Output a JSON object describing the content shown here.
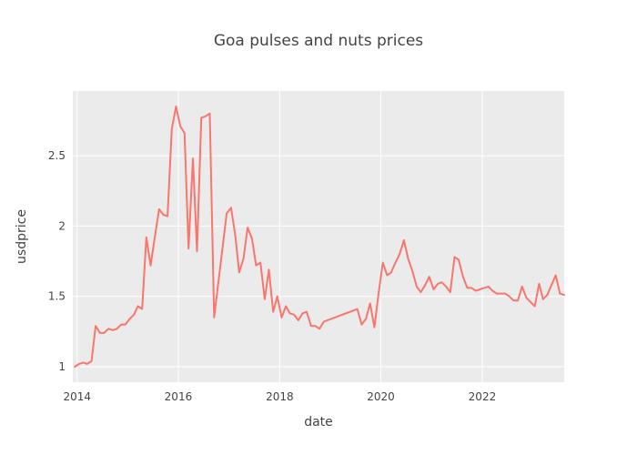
{
  "chart_data": {
    "type": "line",
    "title": "Goa pulses and nuts prices",
    "xlabel": "date",
    "ylabel": "usdprice",
    "x_ticks": [
      "2014",
      "2016",
      "2018",
      "2020",
      "2022"
    ],
    "y_ticks": [
      "1",
      "1.5",
      "2",
      "2.5"
    ],
    "xlim": [
      "2013-12-01",
      "2023-08-15"
    ],
    "ylim": [
      0.89,
      2.96
    ],
    "grid": true,
    "colors": {
      "series": "#f8766d",
      "plot_bg": "#ebebeb",
      "grid": "#ffffff"
    },
    "series": [
      {
        "x": [
          "2013-12-15",
          "2014-01-15",
          "2014-02-15",
          "2014-03-15",
          "2014-04-15",
          "2014-05-15",
          "2014-06-15",
          "2014-07-15",
          "2014-08-15",
          "2014-09-15",
          "2014-10-15",
          "2014-11-15",
          "2014-12-15",
          "2015-01-15",
          "2015-02-15",
          "2015-03-15",
          "2015-04-15",
          "2015-05-15",
          "2015-06-15",
          "2015-07-15",
          "2015-08-15",
          "2015-09-15",
          "2015-10-15",
          "2015-11-15",
          "2015-12-15",
          "2016-01-15",
          "2016-02-15",
          "2016-03-15",
          "2016-04-15",
          "2016-05-15",
          "2016-06-15",
          "2016-07-15",
          "2016-08-15",
          "2016-09-15",
          "2016-12-15",
          "2017-01-15",
          "2017-02-15",
          "2017-03-15",
          "2017-04-15",
          "2017-05-15",
          "2017-06-15",
          "2017-07-15",
          "2017-08-15",
          "2017-09-15",
          "2017-10-15",
          "2017-11-15",
          "2017-12-15",
          "2018-01-15",
          "2018-02-15",
          "2018-03-15",
          "2018-04-15",
          "2018-05-15",
          "2018-06-15",
          "2018-07-15",
          "2018-08-15",
          "2018-09-15",
          "2018-10-15",
          "2018-11-15",
          "2019-07-15",
          "2019-08-15",
          "2019-09-15",
          "2019-10-15",
          "2019-11-15",
          "2019-12-15",
          "2020-01-15",
          "2020-02-15",
          "2020-03-15",
          "2020-04-15",
          "2020-05-15",
          "2020-06-15",
          "2020-07-15",
          "2020-08-15",
          "2020-09-15",
          "2020-10-15",
          "2020-11-15",
          "2020-12-15",
          "2021-01-15",
          "2021-02-15",
          "2021-03-15",
          "2021-04-15",
          "2021-05-15",
          "2021-06-15",
          "2021-07-15",
          "2021-08-15",
          "2021-09-15",
          "2021-10-15",
          "2021-11-15",
          "2021-12-15",
          "2022-01-15",
          "2022-02-15",
          "2022-03-15",
          "2022-04-15",
          "2022-05-15",
          "2022-06-15",
          "2022-07-15",
          "2022-08-15",
          "2022-09-15",
          "2022-10-15",
          "2022-11-15",
          "2022-12-15",
          "2023-01-15",
          "2023-02-15",
          "2023-03-15",
          "2023-04-15",
          "2023-05-15",
          "2023-06-15",
          "2023-07-15",
          "2023-08-15"
        ],
        "y": [
          1.0,
          1.02,
          1.03,
          1.02,
          1.04,
          1.29,
          1.24,
          1.24,
          1.27,
          1.26,
          1.27,
          1.3,
          1.3,
          1.34,
          1.37,
          1.43,
          1.41,
          1.92,
          1.72,
          1.92,
          2.12,
          2.08,
          2.07,
          2.69,
          2.85,
          2.71,
          2.66,
          1.84,
          2.48,
          1.82,
          2.77,
          2.78,
          2.8,
          1.35,
          2.09,
          2.13,
          1.93,
          1.67,
          1.77,
          1.99,
          1.91,
          1.72,
          1.74,
          1.48,
          1.69,
          1.39,
          1.5,
          1.35,
          1.43,
          1.38,
          1.37,
          1.33,
          1.38,
          1.39,
          1.29,
          1.29,
          1.27,
          1.32,
          1.41,
          1.3,
          1.34,
          1.45,
          1.28,
          1.52,
          1.74,
          1.65,
          1.67,
          1.74,
          1.8,
          1.9,
          1.77,
          1.68,
          1.57,
          1.53,
          1.58,
          1.64,
          1.55,
          1.59,
          1.6,
          1.57,
          1.53,
          1.78,
          1.76,
          1.64,
          1.56,
          1.56,
          1.54,
          1.55,
          1.56,
          1.57,
          1.54,
          1.52,
          1.52,
          1.52,
          1.5,
          1.47,
          1.47,
          1.57,
          1.49,
          1.46,
          1.43,
          1.59,
          1.48,
          1.51,
          1.58,
          1.65,
          1.52,
          1.51
        ]
      }
    ]
  }
}
